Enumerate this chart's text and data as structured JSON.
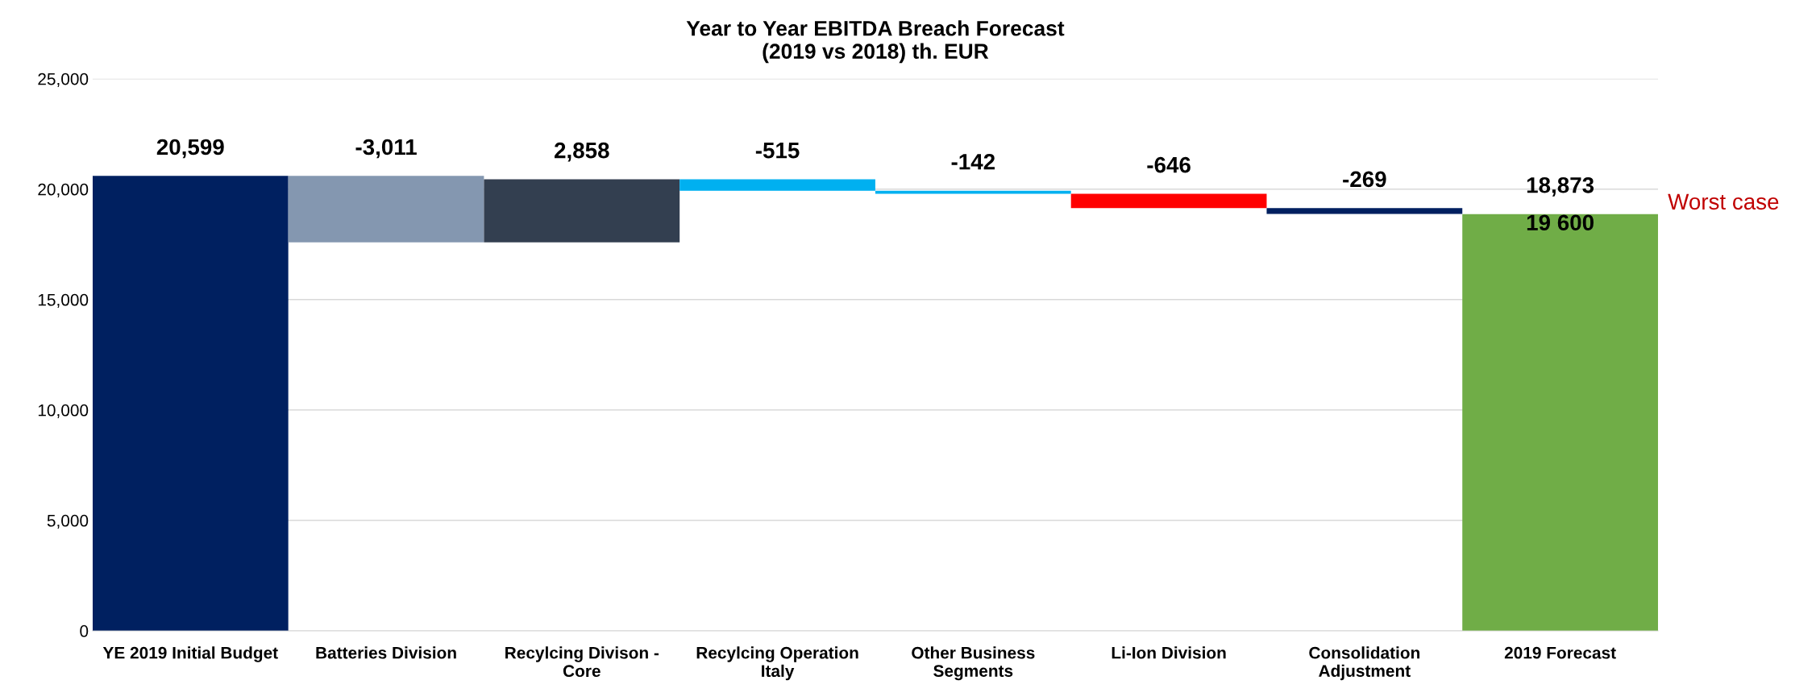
{
  "chart_data": {
    "type": "bar",
    "title": "Year to Year EBITDA Breach Forecast\n(2019 vs 2018) th. EUR",
    "categories": [
      "YE 2019 Initial Budget",
      "Batteries Division",
      "Recylcing Divison -\nCore",
      "Recylcing Operation\nItaly",
      "Other Business\nSegments",
      "Li-Ion Division",
      "Consolidation\nAdjustment",
      "2019 Forecast"
    ],
    "values": [
      20599,
      -3011,
      2858,
      -515,
      -142,
      -646,
      -269,
      18873
    ],
    "base": [
      0,
      20599,
      17588,
      20446,
      19931,
      19789,
      19143,
      0
    ],
    "colors": [
      "#002060",
      "#8497b0",
      "#333f50",
      "#00b0f0",
      "#00b0f0",
      "#ff0000",
      "#002060",
      "#70ad47"
    ],
    "value_labels": [
      "20,599",
      "-3,011",
      "2,858",
      "-515",
      "-142",
      "-646",
      "-269",
      "18,873"
    ],
    "ylim": [
      0,
      25000
    ],
    "yticks": [
      0,
      {
        "value": 5000,
        "label": "5,000"
      },
      {
        "value": 10000,
        "label": "10,000"
      },
      {
        "value": 15000,
        "label": "15,000"
      },
      {
        "value": 20000,
        "label": "20,000"
      },
      {
        "value": 25000,
        "label": "25,000"
      }
    ],
    "grid": "y",
    "annotations": [
      "19 600",
      "Worst case"
    ]
  }
}
